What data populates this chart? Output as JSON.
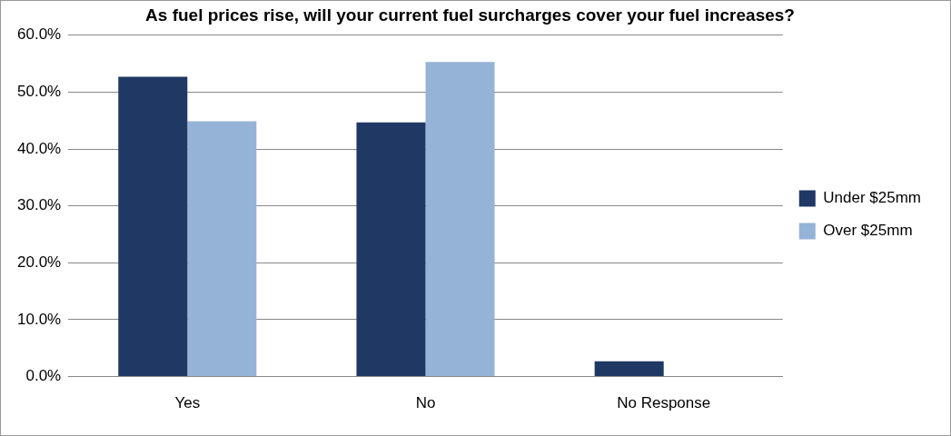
{
  "chart_data": {
    "type": "bar",
    "title": "As fuel prices rise, will your current fuel surcharges cover your fuel increases?",
    "categories": [
      "Yes",
      "No",
      "No Response"
    ],
    "series": [
      {
        "name": "Under $25mm",
        "color": "#1f3864",
        "values": [
          52.7,
          44.7,
          2.7
        ]
      },
      {
        "name": "Over $25mm",
        "color": "#95b3d7",
        "values": [
          44.9,
          55.3,
          0
        ]
      }
    ],
    "ylim": [
      0,
      60
    ],
    "yticks": [
      {
        "value": 0,
        "label": "0.0%"
      },
      {
        "value": 10,
        "label": "10.0%"
      },
      {
        "value": 20,
        "label": "20.0%"
      },
      {
        "value": 30,
        "label": "30.0%"
      },
      {
        "value": 40,
        "label": "40.0%"
      },
      {
        "value": 50,
        "label": "50.0%"
      },
      {
        "value": 60,
        "label": "60.0%"
      }
    ],
    "grid": "y",
    "legend": "right"
  }
}
